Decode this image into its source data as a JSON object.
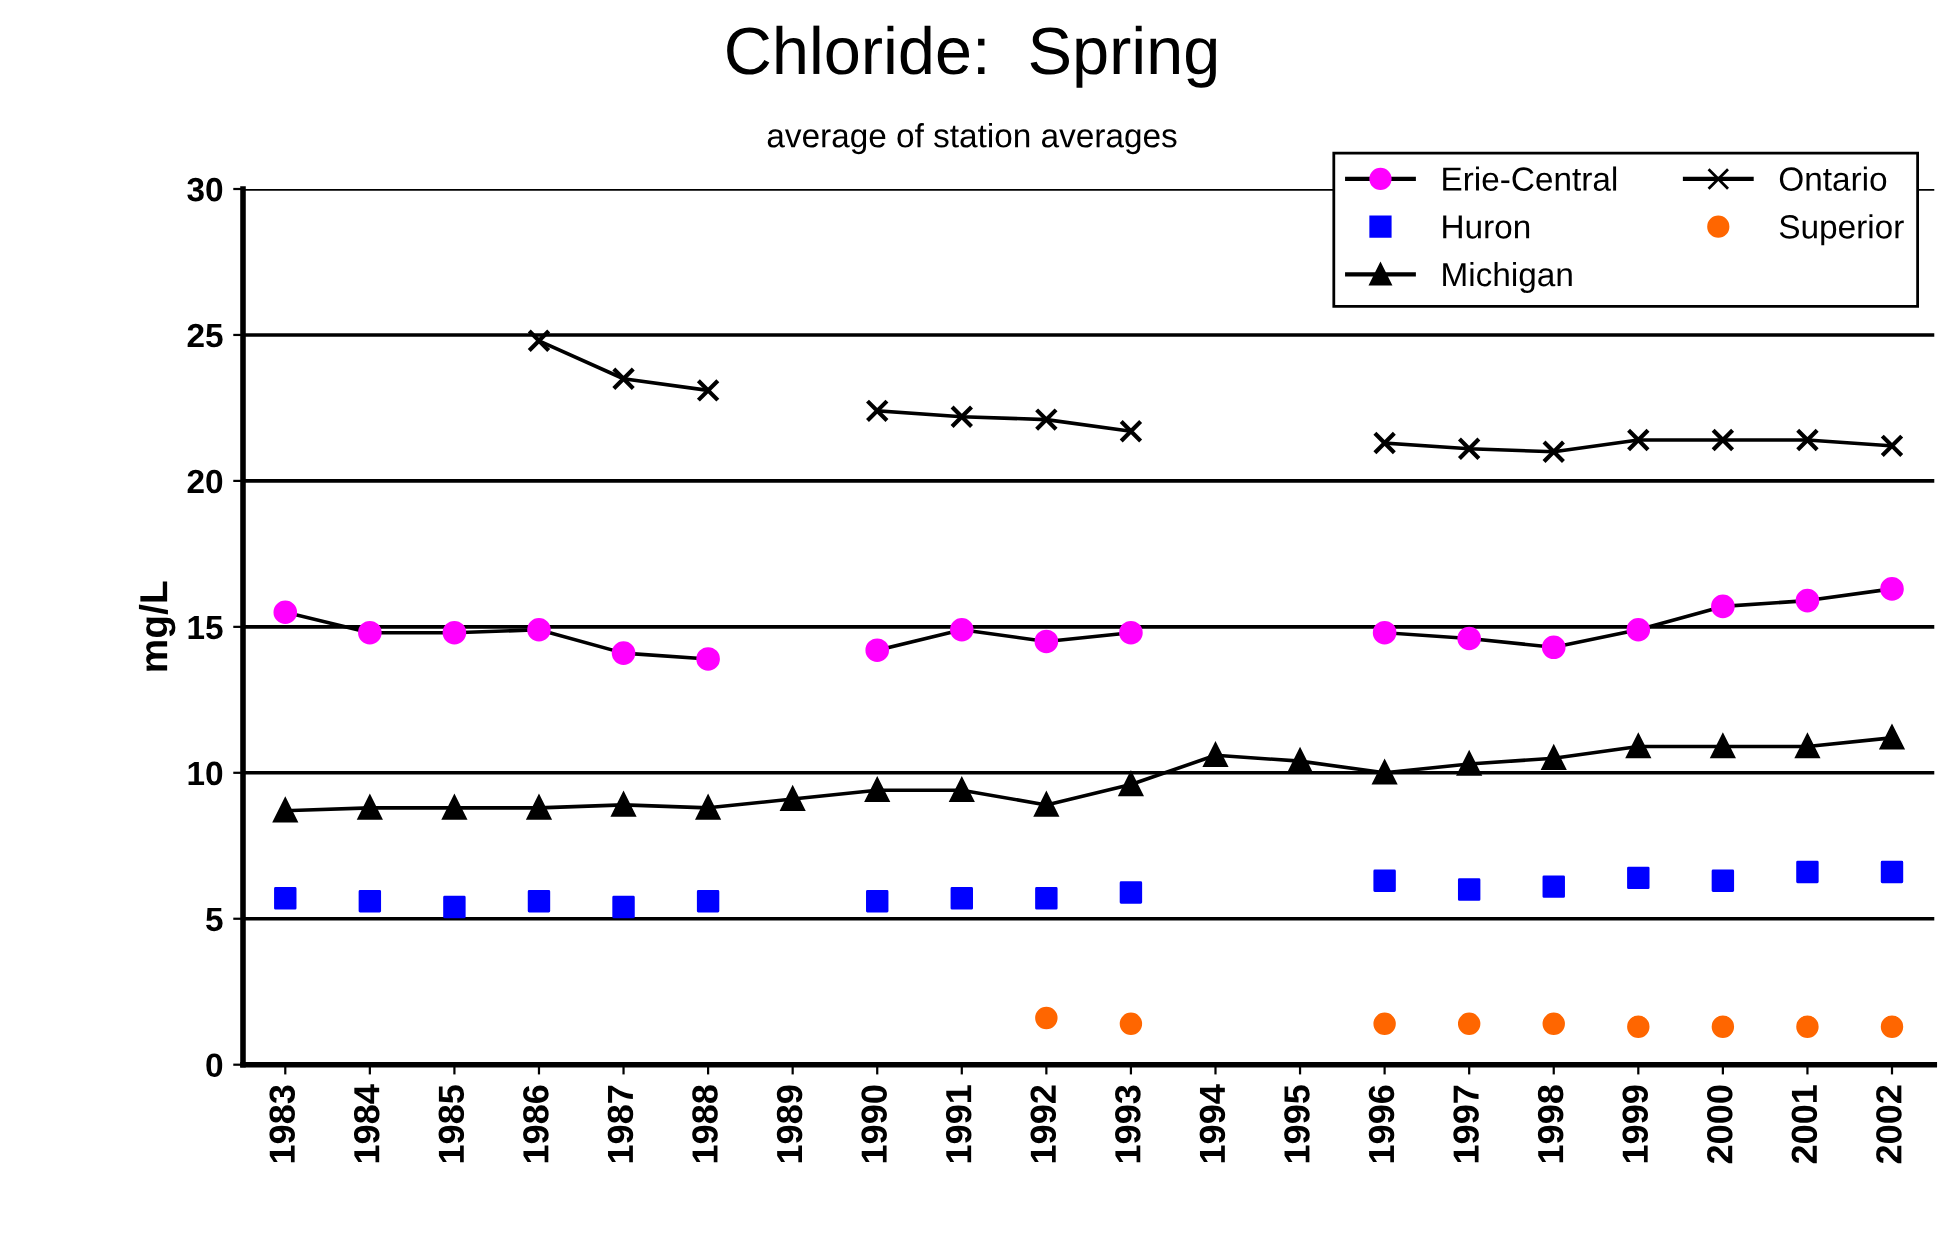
{
  "chart_data": {
    "type": "line",
    "title": "Chloride:  Spring",
    "subtitle": "average of station averages",
    "ylabel": "mg/L",
    "categories": [
      "1983",
      "1984",
      "1985",
      "1986",
      "1987",
      "1988",
      "1989",
      "1990",
      "1991",
      "1992",
      "1993",
      "1994",
      "1995",
      "1996",
      "1997",
      "1998",
      "1999",
      "2000",
      "2001",
      "2002"
    ],
    "series": [
      {
        "name": "Erie-Central",
        "color": "#ff00ff",
        "marker": "circle",
        "line_style": "solid",
        "values": [
          15.5,
          14.8,
          14.8,
          14.9,
          14.1,
          13.9,
          null,
          14.2,
          14.9,
          14.5,
          14.8,
          null,
          null,
          14.8,
          14.6,
          14.3,
          14.9,
          15.7,
          15.9,
          16.3
        ]
      },
      {
        "name": "Huron",
        "type": "scatter",
        "color": "#0000ff",
        "marker": "square",
        "values": [
          5.7,
          5.6,
          5.4,
          5.6,
          5.4,
          5.6,
          null,
          5.6,
          5.7,
          5.7,
          5.9,
          null,
          null,
          6.3,
          6.0,
          6.1,
          6.4,
          6.3,
          6.6,
          6.6
        ]
      },
      {
        "name": "Michigan",
        "color": "#000000",
        "marker": "triangle",
        "line_style": "solid",
        "values": [
          8.7,
          8.8,
          8.8,
          8.8,
          8.9,
          8.8,
          9.1,
          9.4,
          9.4,
          8.9,
          9.6,
          10.6,
          10.4,
          10.0,
          10.3,
          10.5,
          10.9,
          10.9,
          10.9,
          11.2
        ]
      },
      {
        "name": "Ontario",
        "color": "#000000",
        "marker": "cross",
        "line_style": "solid",
        "values": [
          null,
          null,
          null,
          24.8,
          23.5,
          23.1,
          null,
          22.4,
          22.2,
          22.1,
          21.7,
          null,
          null,
          21.3,
          21.1,
          21.0,
          21.4,
          21.4,
          21.4,
          21.2
        ]
      },
      {
        "name": "Superior",
        "type": "scatter",
        "color": "#ff6600",
        "marker": "circle",
        "values": [
          null,
          null,
          null,
          null,
          null,
          null,
          null,
          null,
          null,
          1.6,
          1.4,
          null,
          null,
          1.4,
          1.4,
          1.4,
          1.3,
          1.3,
          1.3,
          1.3
        ]
      }
    ],
    "ylim": [
      0,
      30
    ],
    "yticks": [
      0,
      5,
      10,
      15,
      20,
      25,
      30
    ],
    "grid": "y",
    "legend": "top right"
  }
}
